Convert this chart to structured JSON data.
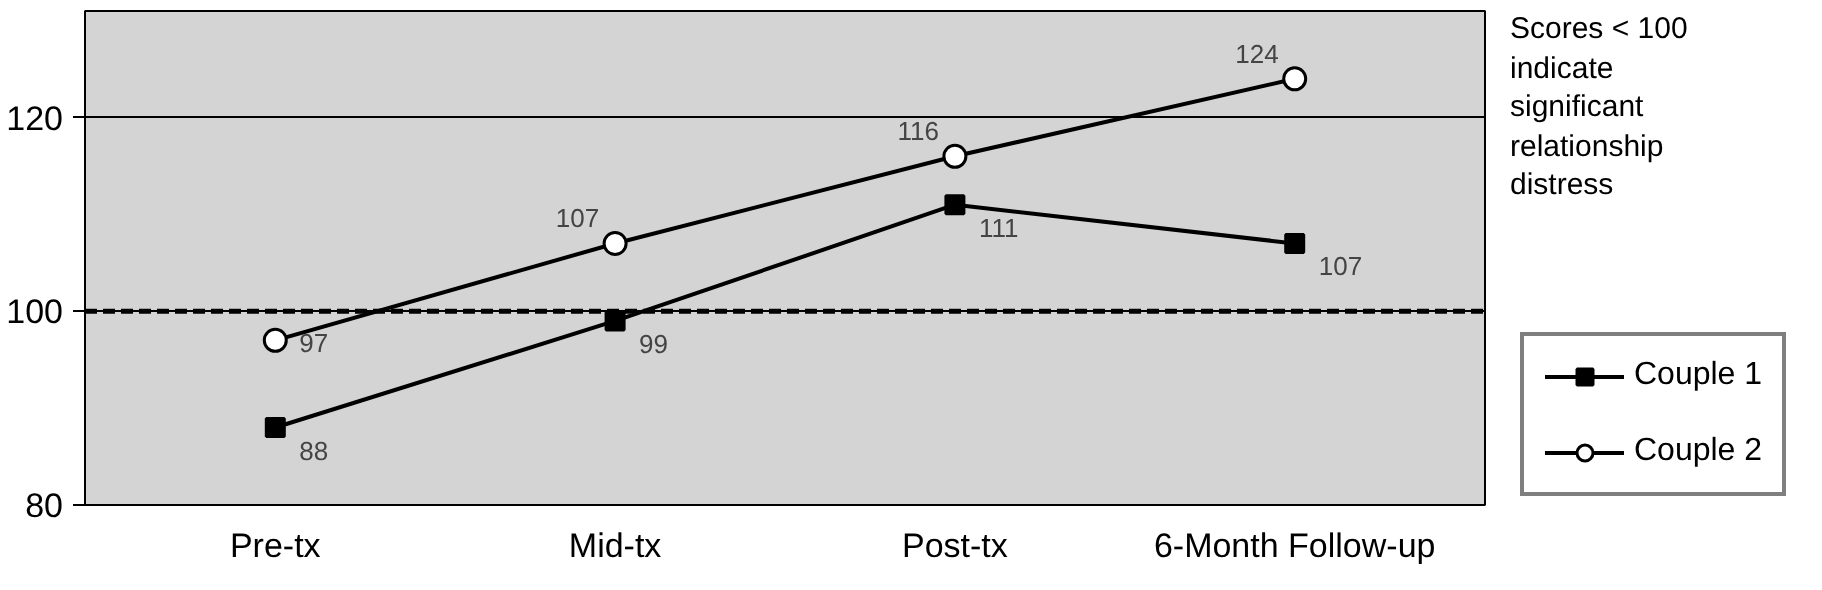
{
  "chart_data": {
    "type": "line",
    "categories": [
      "Pre-tx",
      "Mid-tx",
      "Post-tx",
      "6-Month Follow-up"
    ],
    "series": [
      {
        "name": "Couple 1",
        "color": "#000000",
        "marker": "square",
        "values": [
          88,
          99,
          111,
          107
        ]
      },
      {
        "name": "Couple 2",
        "color": "#000000",
        "marker": "circle",
        "values": [
          97,
          107,
          116,
          124
        ]
      }
    ],
    "ylim": [
      80,
      131
    ],
    "yticks": [
      80,
      100,
      120
    ],
    "grid": "y",
    "data_labels": true,
    "legend": "right",
    "ref_lines": [
      {
        "axis": "y",
        "value": 100,
        "line_style": "dashed",
        "color": "#000000"
      }
    ],
    "annotations": [
      "Scores < 100 indicate significant relationship distress"
    ]
  }
}
